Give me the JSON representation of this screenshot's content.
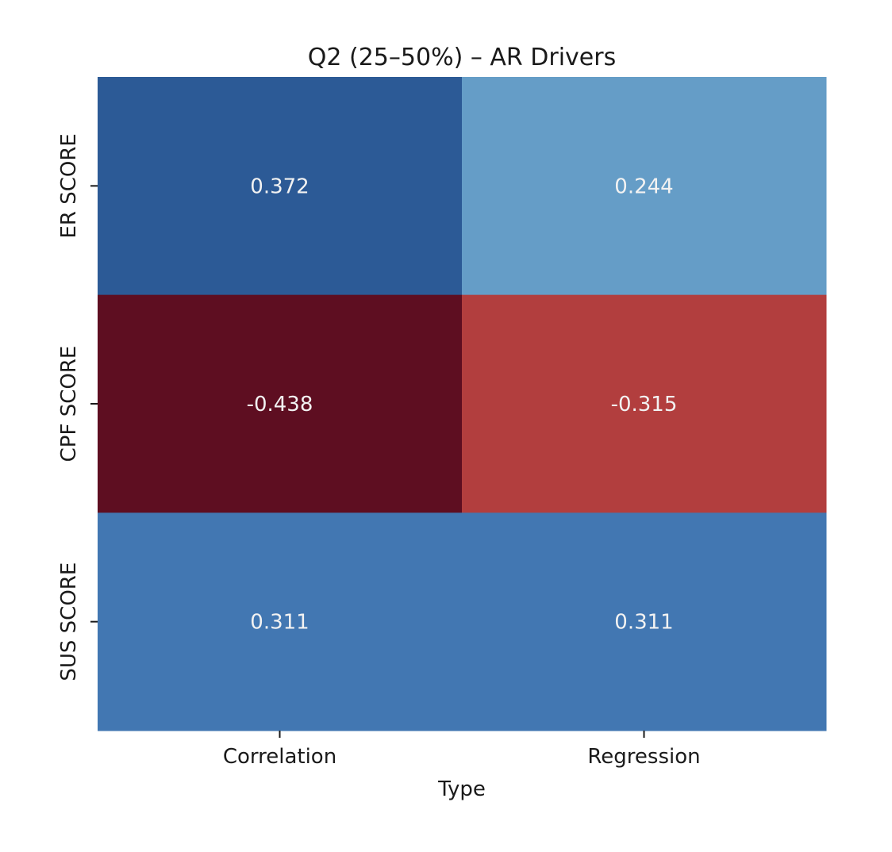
{
  "chart_data": {
    "type": "heatmap",
    "title": "Q2 (25–50%) – AR Drivers",
    "xlabel": "Type",
    "ylabel": "",
    "x_categories": [
      "Correlation",
      "Regression"
    ],
    "y_categories": [
      "ER SCORE",
      "CPF SCORE",
      "SUS SCORE"
    ],
    "values": [
      [
        0.372,
        0.244
      ],
      [
        -0.438,
        -0.315
      ],
      [
        0.311,
        0.311
      ]
    ],
    "value_labels": [
      [
        "0.372",
        "0.244"
      ],
      [
        "-0.438",
        "-0.315"
      ],
      [
        "0.311",
        "0.311"
      ]
    ],
    "cell_colors": [
      [
        "#2c5a96",
        "#659dc7"
      ],
      [
        "#5e0e21",
        "#b23e3e"
      ],
      [
        "#4277b2",
        "#4277b2"
      ]
    ],
    "colormap": "RdBu",
    "colorbar": false,
    "grid": false
  }
}
